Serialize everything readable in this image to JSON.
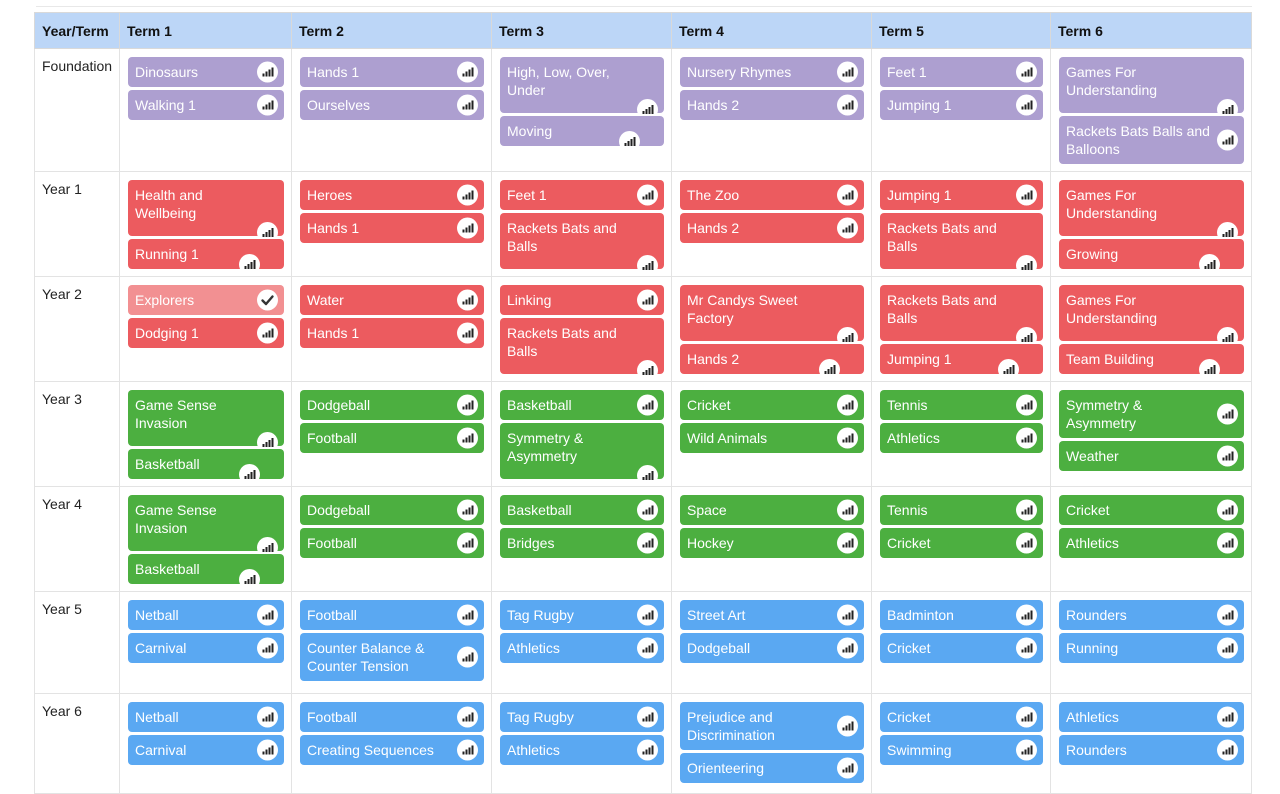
{
  "header": {
    "year_term": "Year/Term",
    "terms": [
      "Term 1",
      "Term 2",
      "Term 3",
      "Term 4",
      "Term 5",
      "Term 6"
    ]
  },
  "colors": {
    "foundation": "#ad9fd0",
    "years_1_2": "#ec5b5f",
    "years_1_2_completed": "#f29092",
    "years_3_4": "#4caf40",
    "years_5_6": "#5aa8f2",
    "header": "#bcd6f7"
  },
  "icons": {
    "progress": "signal-bars-icon",
    "completed": "checkmark-icon"
  },
  "rows": [
    {
      "label": "Foundation",
      "color": "purple",
      "terms": [
        [
          {
            "title": "Dinosaurs",
            "icon": "signal"
          },
          {
            "title": "Walking 1",
            "icon": "signal"
          }
        ],
        [
          {
            "title": "Hands 1",
            "icon": "signal"
          },
          {
            "title": "Ourselves",
            "icon": "signal"
          }
        ],
        [
          {
            "title": "High, Low, Over, Under",
            "icon": "signal",
            "drop": true
          },
          {
            "title": "Moving",
            "icon": "signal",
            "left": true
          }
        ],
        [
          {
            "title": "Nursery Rhymes",
            "icon": "signal"
          },
          {
            "title": "Hands 2",
            "icon": "signal"
          }
        ],
        [
          {
            "title": "Feet 1",
            "icon": "signal"
          },
          {
            "title": "Jumping 1",
            "icon": "signal"
          }
        ],
        [
          {
            "title": "Games For Understanding",
            "icon": "signal",
            "drop": true
          },
          {
            "title": "Rackets Bats Balls and Balloons",
            "icon": "signal"
          }
        ]
      ]
    },
    {
      "label": "Year 1",
      "color": "red",
      "terms": [
        [
          {
            "title": "Health and Wellbeing",
            "icon": "signal",
            "drop": true
          },
          {
            "title": "Running 1",
            "icon": "signal",
            "left": true
          }
        ],
        [
          {
            "title": "Heroes",
            "icon": "signal"
          },
          {
            "title": "Hands 1",
            "icon": "signal"
          }
        ],
        [
          {
            "title": "Feet 1",
            "icon": "signal"
          },
          {
            "title": "Rackets Bats and Balls",
            "icon": "signal",
            "drop": true
          }
        ],
        [
          {
            "title": "The Zoo",
            "icon": "signal"
          },
          {
            "title": "Hands 2",
            "icon": "signal"
          }
        ],
        [
          {
            "title": "Jumping 1",
            "icon": "signal"
          },
          {
            "title": "Rackets Bats and Balls",
            "icon": "signal",
            "drop": true
          }
        ],
        [
          {
            "title": "Games For Understanding",
            "icon": "signal",
            "drop": true
          },
          {
            "title": "Growing",
            "icon": "signal",
            "left": true
          }
        ]
      ]
    },
    {
      "label": "Year 2",
      "color": "red",
      "terms": [
        [
          {
            "title": "Explorers",
            "icon": "check",
            "completed": true
          },
          {
            "title": "Dodging 1",
            "icon": "signal"
          }
        ],
        [
          {
            "title": "Water",
            "icon": "signal"
          },
          {
            "title": "Hands 1",
            "icon": "signal"
          }
        ],
        [
          {
            "title": "Linking",
            "icon": "signal"
          },
          {
            "title": "Rackets Bats and Balls",
            "icon": "signal",
            "drop": true
          }
        ],
        [
          {
            "title": "Mr Candys Sweet Factory",
            "icon": "signal",
            "drop": true
          },
          {
            "title": "Hands 2",
            "icon": "signal",
            "left": true
          }
        ],
        [
          {
            "title": "Rackets Bats and Balls",
            "icon": "signal",
            "drop": true
          },
          {
            "title": "Jumping 1",
            "icon": "signal",
            "left": true
          }
        ],
        [
          {
            "title": "Games For Understanding",
            "icon": "signal",
            "drop": true
          },
          {
            "title": "Team Building",
            "icon": "signal",
            "left": true
          }
        ]
      ]
    },
    {
      "label": "Year 3",
      "color": "green",
      "terms": [
        [
          {
            "title": "Game Sense Invasion",
            "icon": "signal",
            "drop": true
          },
          {
            "title": "Basketball",
            "icon": "signal",
            "left": true
          }
        ],
        [
          {
            "title": "Dodgeball",
            "icon": "signal"
          },
          {
            "title": "Football",
            "icon": "signal"
          }
        ],
        [
          {
            "title": "Basketball",
            "icon": "signal"
          },
          {
            "title": "Symmetry & Asymmetry",
            "icon": "signal",
            "drop": true
          }
        ],
        [
          {
            "title": "Cricket",
            "icon": "signal"
          },
          {
            "title": "Wild Animals",
            "icon": "signal"
          }
        ],
        [
          {
            "title": "Tennis",
            "icon": "signal"
          },
          {
            "title": "Athletics",
            "icon": "signal"
          }
        ],
        [
          {
            "title": "Symmetry & Asymmetry",
            "icon": "signal"
          },
          {
            "title": "Weather",
            "icon": "signal"
          }
        ]
      ]
    },
    {
      "label": "Year 4",
      "color": "green",
      "terms": [
        [
          {
            "title": "Game Sense Invasion",
            "icon": "signal",
            "drop": true
          },
          {
            "title": "Basketball",
            "icon": "signal",
            "left": true
          }
        ],
        [
          {
            "title": "Dodgeball",
            "icon": "signal"
          },
          {
            "title": "Football",
            "icon": "signal"
          }
        ],
        [
          {
            "title": "Basketball",
            "icon": "signal"
          },
          {
            "title": "Bridges",
            "icon": "signal"
          }
        ],
        [
          {
            "title": "Space",
            "icon": "signal"
          },
          {
            "title": "Hockey",
            "icon": "signal"
          }
        ],
        [
          {
            "title": "Tennis",
            "icon": "signal"
          },
          {
            "title": "Cricket",
            "icon": "signal"
          }
        ],
        [
          {
            "title": "Cricket",
            "icon": "signal"
          },
          {
            "title": "Athletics",
            "icon": "signal"
          }
        ]
      ]
    },
    {
      "label": "Year 5",
      "color": "blue",
      "terms": [
        [
          {
            "title": "Netball",
            "icon": "signal"
          },
          {
            "title": "Carnival",
            "icon": "signal"
          }
        ],
        [
          {
            "title": "Football",
            "icon": "signal"
          },
          {
            "title": "Counter Balance & Counter Tension",
            "icon": "signal"
          }
        ],
        [
          {
            "title": "Tag Rugby",
            "icon": "signal"
          },
          {
            "title": "Athletics",
            "icon": "signal"
          }
        ],
        [
          {
            "title": "Street Art",
            "icon": "signal"
          },
          {
            "title": "Dodgeball",
            "icon": "signal"
          }
        ],
        [
          {
            "title": "Badminton",
            "icon": "signal"
          },
          {
            "title": "Cricket",
            "icon": "signal"
          }
        ],
        [
          {
            "title": "Rounders",
            "icon": "signal"
          },
          {
            "title": "Running",
            "icon": "signal"
          }
        ]
      ]
    },
    {
      "label": "Year 6",
      "color": "blue",
      "terms": [
        [
          {
            "title": "Netball",
            "icon": "signal"
          },
          {
            "title": "Carnival",
            "icon": "signal"
          }
        ],
        [
          {
            "title": "Football",
            "icon": "signal"
          },
          {
            "title": "Creating Sequences",
            "icon": "signal"
          }
        ],
        [
          {
            "title": "Tag Rugby",
            "icon": "signal"
          },
          {
            "title": "Athletics",
            "icon": "signal"
          }
        ],
        [
          {
            "title": "Prejudice and Discrimination",
            "icon": "signal"
          },
          {
            "title": "Orienteering",
            "icon": "signal"
          }
        ],
        [
          {
            "title": "Cricket",
            "icon": "signal"
          },
          {
            "title": "Swimming",
            "icon": "signal"
          }
        ],
        [
          {
            "title": "Athletics",
            "icon": "signal"
          },
          {
            "title": "Rounders",
            "icon": "signal"
          }
        ]
      ]
    }
  ]
}
